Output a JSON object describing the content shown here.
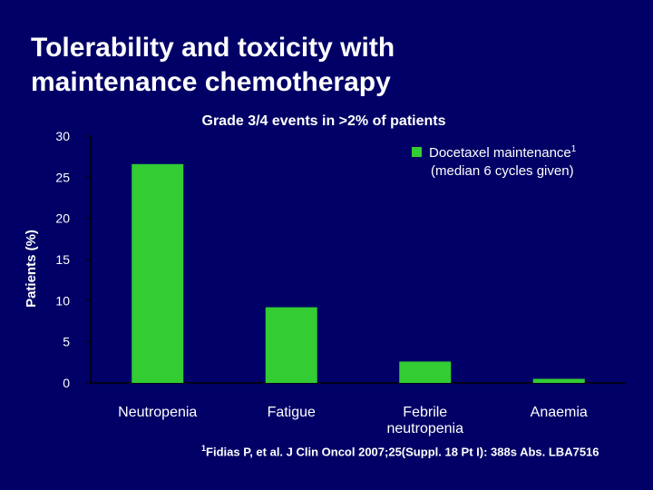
{
  "slide": {
    "title_line1": "Tolerability and toxicity with",
    "title_line2": "maintenance chemotherapy",
    "footnote_marker": "1",
    "footnote_text": "Fidias P, et al. J Clin Oncol 2007;25(Suppl. 18 Pt I): 388s Abs. LBA7516"
  },
  "colors": {
    "background": "#000066",
    "bar": "#33cc33",
    "text": "#ffffff",
    "axis": "#000000"
  },
  "chart_data": {
    "type": "bar",
    "title": "Grade 3/4 events in >2% of patients",
    "ylabel": "Patients (%)",
    "xlabel": "",
    "categories": [
      [
        "Neutropenia"
      ],
      [
        "Fatigue"
      ],
      [
        "Febrile",
        "neutropenia"
      ],
      [
        "Anaemia"
      ]
    ],
    "series": [
      {
        "name_line1": "Docetaxel maintenance",
        "name_superscript": "1",
        "name_line2": "(median 6 cycles given)",
        "values": [
          26.6,
          9.2,
          2.6,
          0.5
        ]
      }
    ],
    "ylim": [
      0,
      30
    ],
    "yticks": [
      0,
      5,
      10,
      15,
      20,
      25,
      30
    ],
    "grid": false,
    "legend_position": "top-right"
  }
}
